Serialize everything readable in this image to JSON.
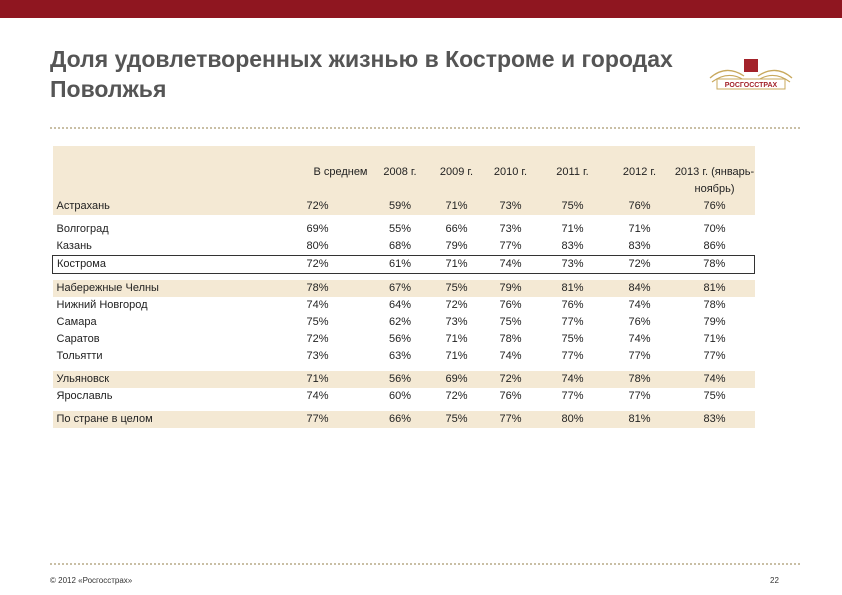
{
  "title": "Доля удовлетворенных жизнью в Костроме и городах Поволжья",
  "logo_text": "РОСГОССТРАХ",
  "columns": [
    "В среднем",
    "2008 г.",
    "2009 г.",
    "2010 г.",
    "2011 г.",
    "2012 г.",
    "2013 г. (январь-ноябрь)"
  ],
  "rows": [
    {
      "city": "Астрахань",
      "values": [
        "72%",
        "59%",
        "71%",
        "73%",
        "75%",
        "76%",
        "76%"
      ]
    },
    {
      "city": "Волгоград",
      "values": [
        "69%",
        "55%",
        "66%",
        "73%",
        "71%",
        "71%",
        "70%"
      ]
    },
    {
      "city": "Казань",
      "values": [
        "80%",
        "68%",
        "79%",
        "77%",
        "83%",
        "83%",
        "86%"
      ]
    },
    {
      "city": "Кострома",
      "values": [
        "72%",
        "61%",
        "71%",
        "74%",
        "73%",
        "72%",
        "78%"
      ]
    },
    {
      "city": "Набережные Челны",
      "values": [
        "78%",
        "67%",
        "75%",
        "79%",
        "81%",
        "84%",
        "81%"
      ]
    },
    {
      "city": "Нижний Новгород",
      "values": [
        "74%",
        "64%",
        "72%",
        "76%",
        "76%",
        "74%",
        "78%"
      ]
    },
    {
      "city": "Самара",
      "values": [
        "75%",
        "62%",
        "73%",
        "75%",
        "77%",
        "76%",
        "79%"
      ]
    },
    {
      "city": "Саратов",
      "values": [
        "72%",
        "56%",
        "71%",
        "78%",
        "75%",
        "74%",
        "71%"
      ]
    },
    {
      "city": "Тольятти",
      "values": [
        "73%",
        "63%",
        "71%",
        "74%",
        "77%",
        "77%",
        "77%"
      ]
    },
    {
      "city": "Ульяновск",
      "values": [
        "71%",
        "56%",
        "69%",
        "72%",
        "74%",
        "78%",
        "74%"
      ]
    },
    {
      "city": "Ярославль",
      "values": [
        "74%",
        "60%",
        "72%",
        "76%",
        "77%",
        "77%",
        "75%"
      ]
    },
    {
      "city": "По стране в целом",
      "values": [
        "77%",
        "66%",
        "75%",
        "77%",
        "80%",
        "81%",
        "83%"
      ]
    }
  ],
  "footer": {
    "copyright": "© 2012 «Росгосстрах»",
    "page": "22"
  },
  "colors": {
    "topbar": "#8f1620",
    "shade": "#f4e9d4",
    "gold": "#c8a85c",
    "logo_red": "#a3222a"
  }
}
